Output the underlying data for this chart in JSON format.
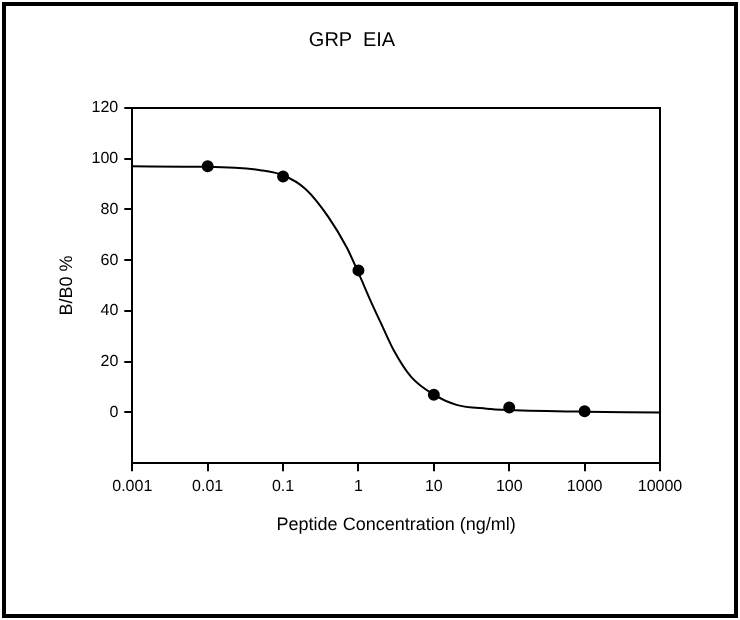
{
  "chart_data": {
    "type": "scatter",
    "title": "GRP  EIA",
    "xlabel": "Peptide Concentration (ng/ml)",
    "ylabel": "B/B0 %",
    "log": "x",
    "xlim": [
      0.001,
      10000
    ],
    "xticks": [
      0.001,
      0.01,
      0.1,
      1,
      10,
      100,
      1000,
      10000
    ],
    "ylim": [
      -20,
      120
    ],
    "yticks": [
      0,
      20,
      40,
      60,
      80,
      100,
      120
    ],
    "series": [
      {
        "type": "scatter",
        "color": "#000000",
        "marker": "circle",
        "x": [
          0.01,
          0.1,
          1,
          10,
          100,
          1000
        ],
        "values": [
          97,
          93,
          56,
          7,
          2,
          0.5
        ]
      },
      {
        "type": "line",
        "color": "#000000",
        "marker": "none",
        "line_style": "solid",
        "x": [
          0.001,
          0.01,
          0.05,
          0.1,
          0.2,
          0.4,
          0.7,
          1,
          1.5,
          2,
          3,
          5,
          10,
          20,
          50,
          100,
          1000,
          10000
        ],
        "values": [
          97,
          96.8,
          95.5,
          93.5,
          88,
          77,
          65,
          55,
          43,
          35,
          24,
          14,
          7,
          3,
          1.5,
          1,
          0.3,
          0
        ]
      }
    ]
  }
}
